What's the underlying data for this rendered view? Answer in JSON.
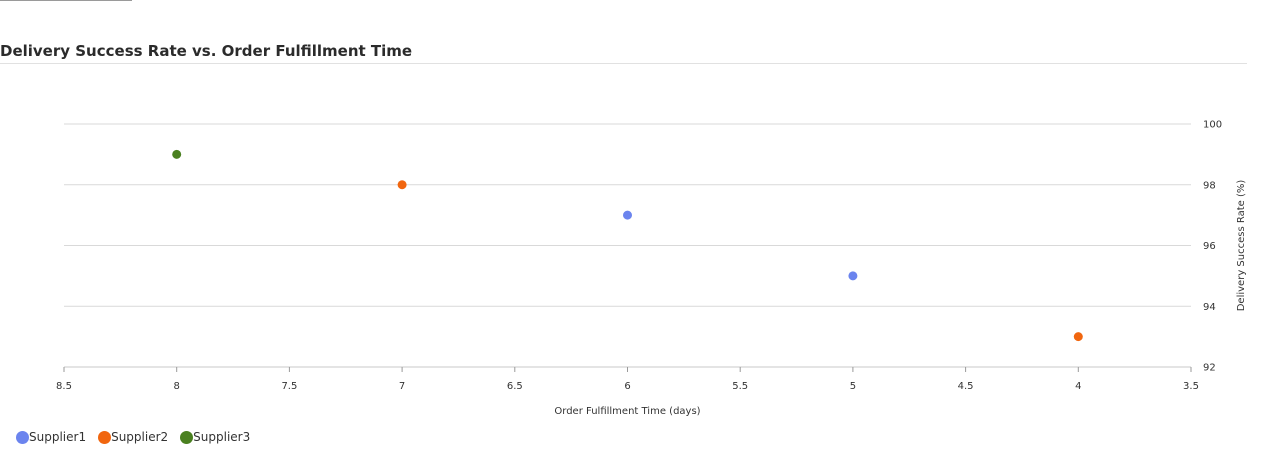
{
  "title": "Delivery Success Rate vs. Order Fulfillment Time",
  "chart_data": {
    "type": "scatter",
    "title": "Delivery Success Rate vs. Order Fulfillment Time",
    "xlabel": "Order Fulfillment Time (days)",
    "ylabel": "Delivery Success Rate (%)",
    "x_reversed": true,
    "xlim": [
      8.5,
      3.5
    ],
    "ylim": [
      92,
      100
    ],
    "x_ticks": [
      "8.5",
      "8",
      "7.5",
      "7",
      "6.5",
      "6",
      "5.5",
      "5",
      "4.5",
      "4",
      "3.5"
    ],
    "y_ticks": [
      "92",
      "94",
      "96",
      "98",
      "100"
    ],
    "y_axis_side": "right",
    "grid": "horizontal",
    "legend_position": "bottom-left",
    "series": [
      {
        "name": "Supplier1",
        "color": "#6b84ee",
        "points": [
          {
            "x": 6,
            "y": 97
          },
          {
            "x": 5,
            "y": 95
          }
        ]
      },
      {
        "name": "Supplier2",
        "color": "#f1660f",
        "points": [
          {
            "x": 7,
            "y": 98
          },
          {
            "x": 4,
            "y": 93
          }
        ]
      },
      {
        "name": "Supplier3",
        "color": "#4a8020",
        "points": [
          {
            "x": 8,
            "y": 99
          }
        ]
      }
    ]
  }
}
